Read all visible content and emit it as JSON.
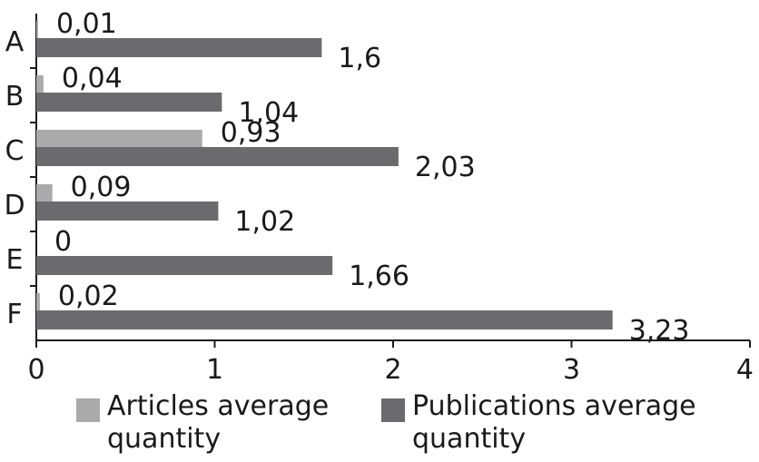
{
  "chart_data": {
    "type": "bar",
    "orientation": "horizontal",
    "categories": [
      "A",
      "B",
      "C",
      "D",
      "E",
      "F"
    ],
    "series": [
      {
        "name": "Articles average quantity",
        "values": [
          0.01,
          0.04,
          0.93,
          0.09,
          0,
          0.02
        ],
        "labels": [
          "0,01",
          "0,04",
          "0,93",
          "0,09",
          "0",
          "0,02"
        ],
        "color": "#aaaaaa"
      },
      {
        "name": "Publications average quantity",
        "values": [
          1.6,
          1.04,
          2.03,
          1.02,
          1.66,
          3.23
        ],
        "labels": [
          "1,6",
          "1,04",
          "2,03",
          "1,02",
          "1,66",
          "3,23"
        ],
        "color": "#6b6b6d"
      }
    ],
    "xlim": [
      0,
      4
    ],
    "xticks": [
      "0",
      "1",
      "2",
      "3",
      "4"
    ],
    "grid": false,
    "legend_position": "bottom"
  },
  "legend": {
    "articles": {
      "line1": "Articles average",
      "line2": "quantity"
    },
    "publications": {
      "line1": "Publications average",
      "line2": "quantity"
    }
  }
}
